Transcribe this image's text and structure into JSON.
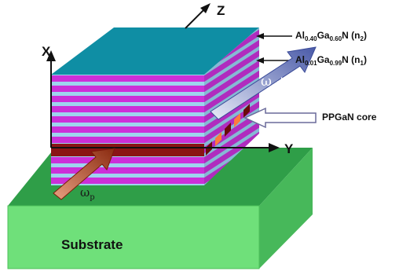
{
  "axes": {
    "x": "X",
    "y": "Y",
    "z": "Z"
  },
  "labels": {
    "barrier_pre": "Al",
    "barrier_al_sub": "0.40",
    "barrier_mid": "Ga",
    "barrier_ga_sub": "0.60",
    "barrier_post": "N (n",
    "barrier_n_sub": "2",
    "barrier_close": ")",
    "well_pre": "Al",
    "well_al_sub": "0.01",
    "well_mid": "Ga",
    "well_ga_sub": "0.99",
    "well_post": "N (n",
    "well_n_sub": "1",
    "well_close": ")",
    "core": "PPGaN core",
    "substrate": "Substrate"
  },
  "beams": {
    "output_sym": "ω",
    "output_s": "s",
    "output_plus": "+ ω",
    "output_i": "i",
    "pump_sym": "ω",
    "pump_p": "p"
  },
  "colors": {
    "top_face": "#0f8ea4",
    "stripe_magenta": "#cc2fd8",
    "stripe_light": "#9ed4ee",
    "core": "#8a1414",
    "substrate_front": "#6fe07a",
    "substrate_top": "#2f9e48",
    "substrate_side": "#47b85a"
  }
}
